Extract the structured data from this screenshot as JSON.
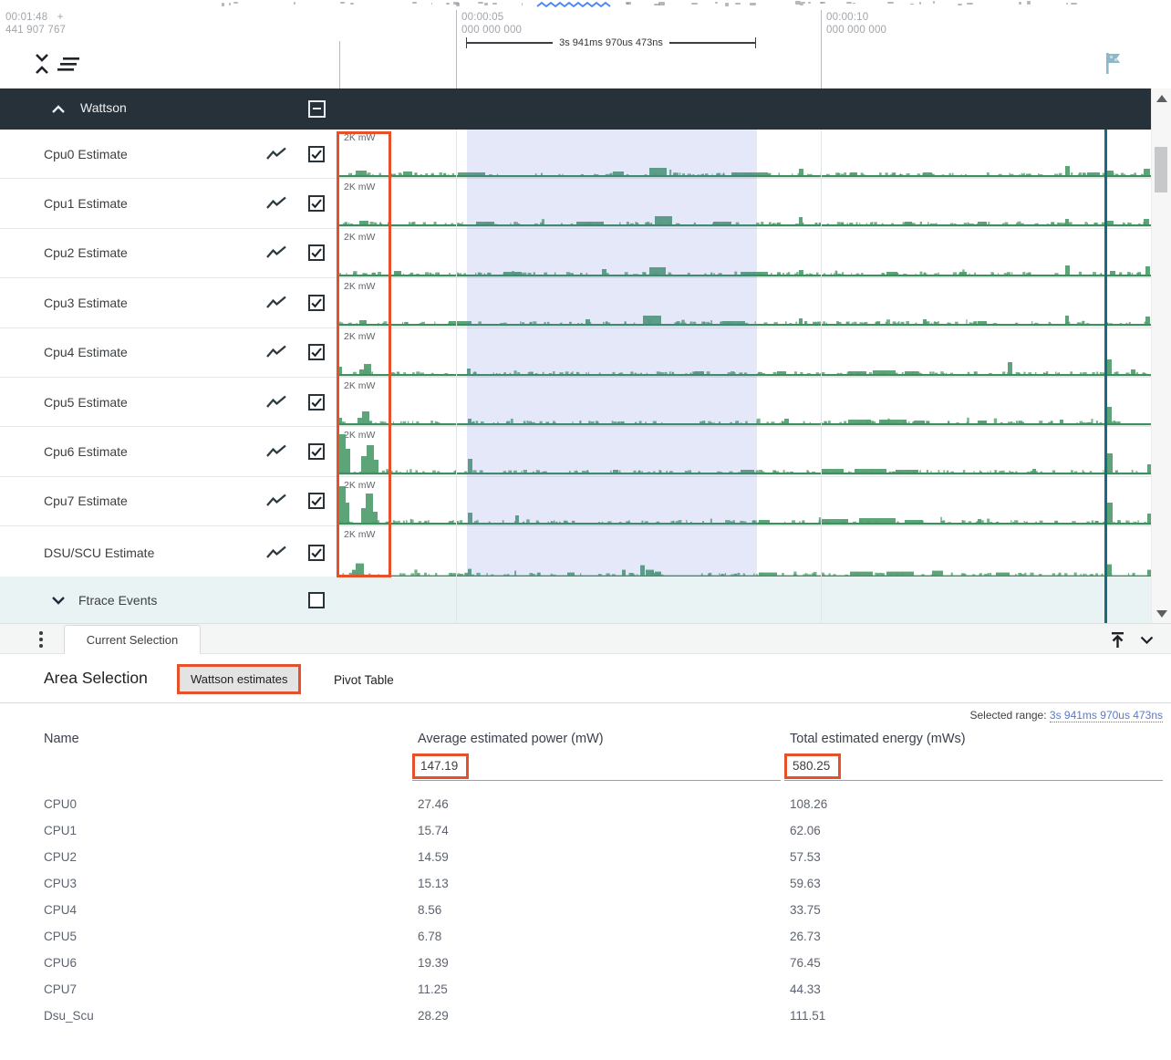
{
  "ruler": {
    "origin_time": "00:01:48",
    "origin_plus": "+",
    "origin_frac": "441 907 767",
    "markers": [
      {
        "time": "00:00:05",
        "frac": "000 000 000"
      },
      {
        "time": "00:00:10",
        "frac": "000 000 000"
      }
    ],
    "span_label": "3s 941ms 970us 473ns"
  },
  "track_panel": {
    "group": {
      "label": "Wattson"
    },
    "scale_label": "2K mW",
    "tracks": [
      {
        "label": "Cpu0 Estimate",
        "spikes": [
          [
            18,
            12,
            5
          ],
          [
            70,
            10,
            4
          ],
          [
            130,
            30,
            3
          ],
          [
            300,
            12,
            4
          ],
          [
            340,
            19,
            8
          ],
          [
            430,
            40,
            3
          ],
          [
            504,
            5,
            7
          ],
          [
            560,
            8,
            3
          ],
          [
            640,
            10,
            3
          ],
          [
            796,
            5,
            10
          ],
          [
            820,
            14,
            3
          ],
          [
            841,
            8,
            5
          ],
          [
            882,
            7,
            7
          ]
        ]
      },
      {
        "label": "Cpu1 Estimate",
        "spikes": [
          [
            22,
            10,
            4
          ],
          [
            150,
            20,
            3
          ],
          [
            260,
            30,
            3
          ],
          [
            346,
            19,
            9
          ],
          [
            410,
            20,
            3
          ],
          [
            504,
            4,
            8
          ],
          [
            620,
            8,
            3
          ],
          [
            700,
            10,
            3
          ],
          [
            796,
            4,
            6
          ],
          [
            841,
            8,
            4
          ],
          [
            882,
            6,
            6
          ]
        ]
      },
      {
        "label": "Cpu2 Estimate",
        "spikes": [
          [
            60,
            8,
            4
          ],
          [
            180,
            20,
            3
          ],
          [
            288,
            5,
            6
          ],
          [
            340,
            18,
            8
          ],
          [
            440,
            30,
            3
          ],
          [
            504,
            5,
            5
          ],
          [
            600,
            12,
            3
          ],
          [
            680,
            8,
            3
          ],
          [
            796,
            5,
            10
          ],
          [
            845,
            6,
            4
          ],
          [
            884,
            5,
            9
          ]
        ]
      },
      {
        "label": "Cpu3 Estimate",
        "spikes": [
          [
            22,
            8,
            4
          ],
          [
            120,
            25,
            3
          ],
          [
            270,
            5,
            5
          ],
          [
            333,
            20,
            9
          ],
          [
            420,
            25,
            3
          ],
          [
            504,
            4,
            6
          ],
          [
            640,
            4,
            5
          ],
          [
            700,
            10,
            3
          ],
          [
            796,
            4,
            9
          ],
          [
            884,
            5,
            8
          ]
        ]
      },
      {
        "label": "Cpu4 Estimate",
        "spikes": [
          [
            0,
            3,
            8
          ],
          [
            22,
            5,
            5
          ],
          [
            27,
            8,
            11
          ],
          [
            140,
            4,
            6
          ],
          [
            390,
            10,
            3
          ],
          [
            480,
            10,
            3
          ],
          [
            558,
            20,
            3
          ],
          [
            585,
            25,
            4
          ],
          [
            620,
            15,
            3
          ],
          [
            733,
            5,
            13
          ],
          [
            841,
            6,
            16
          ],
          [
            868,
            5,
            5
          ]
        ]
      },
      {
        "label": "Cpu5 Estimate",
        "spikes": [
          [
            0,
            3,
            6
          ],
          [
            20,
            5,
            6
          ],
          [
            25,
            8,
            13
          ],
          [
            141,
            4,
            5
          ],
          [
            488,
            5,
            5
          ],
          [
            558,
            25,
            4
          ],
          [
            592,
            30,
            4
          ],
          [
            630,
            12,
            3
          ],
          [
            700,
            10,
            3
          ],
          [
            790,
            4,
            4
          ],
          [
            841,
            6,
            18
          ]
        ]
      },
      {
        "label": "Cpu6 Estimate",
        "spikes": [
          [
            0,
            7,
            42
          ],
          [
            7,
            5,
            26
          ],
          [
            24,
            6,
            18
          ],
          [
            30,
            8,
            30
          ],
          [
            38,
            5,
            14
          ],
          [
            141,
            5,
            15
          ],
          [
            300,
            6,
            3
          ],
          [
            440,
            15,
            3
          ],
          [
            528,
            25,
            4
          ],
          [
            565,
            35,
            4
          ],
          [
            610,
            25,
            3
          ],
          [
            760,
            4,
            4
          ],
          [
            841,
            7,
            21
          ],
          [
            886,
            4,
            9
          ]
        ]
      },
      {
        "label": "Cpu7 Estimate",
        "spikes": [
          [
            0,
            7,
            40
          ],
          [
            7,
            4,
            22
          ],
          [
            24,
            5,
            16
          ],
          [
            29,
            8,
            32
          ],
          [
            37,
            5,
            12
          ],
          [
            141,
            5,
            11
          ],
          [
            193,
            4,
            8
          ],
          [
            460,
            12,
            3
          ],
          [
            528,
            30,
            4
          ],
          [
            570,
            40,
            5
          ],
          [
            620,
            20,
            3
          ],
          [
            700,
            4,
            4
          ],
          [
            841,
            7,
            22
          ],
          [
            886,
            4,
            10
          ]
        ]
      },
      {
        "label": "DSU/SCU Estimate",
        "spikes": [
          [
            14,
            4,
            6
          ],
          [
            18,
            9,
            13
          ],
          [
            141,
            4,
            7
          ],
          [
            250,
            8,
            3
          ],
          [
            310,
            4,
            6
          ],
          [
            330,
            5,
            11
          ],
          [
            336,
            9,
            6
          ],
          [
            346,
            7,
            4
          ],
          [
            460,
            20,
            3
          ],
          [
            560,
            25,
            4
          ],
          [
            600,
            30,
            4
          ],
          [
            650,
            12,
            5
          ],
          [
            720,
            15,
            3
          ],
          [
            841,
            6,
            12
          ],
          [
            886,
            4,
            6
          ]
        ]
      }
    ],
    "ftrace_group": {
      "label": "Ftrace Events"
    }
  },
  "tab_strip": {
    "tab": "Current Selection"
  },
  "details": {
    "title": "Area Selection",
    "tabs": [
      {
        "label": "Wattson estimates",
        "selected": true
      },
      {
        "label": "Pivot Table",
        "selected": false
      }
    ],
    "selected_range_label": "Selected range:",
    "selected_range_value": "3s 941ms 970us 473ns",
    "table": {
      "headers": [
        "Name",
        "Average estimated power (mW)",
        "Total estimated energy (mWs)"
      ],
      "totals": [
        "147.19",
        "580.25"
      ],
      "rows": [
        [
          "CPU0",
          "27.46",
          "108.26"
        ],
        [
          "CPU1",
          "15.74",
          "62.06"
        ],
        [
          "CPU2",
          "14.59",
          "57.53"
        ],
        [
          "CPU3",
          "15.13",
          "59.63"
        ],
        [
          "CPU4",
          "8.56",
          "33.75"
        ],
        [
          "CPU5",
          "6.78",
          "26.73"
        ],
        [
          "CPU6",
          "19.39",
          "76.45"
        ],
        [
          "CPU7",
          "11.25",
          "44.33"
        ],
        [
          "Dsu_Scu",
          "28.29",
          "111.51"
        ]
      ]
    }
  },
  "icons": [
    "collapse-tracks-icon",
    "sort-tracks-icon",
    "flag-icon",
    "chevron-up-icon",
    "chevron-down-icon",
    "line-chart-icon",
    "checkbox-checked",
    "checkbox-indeterminate",
    "checkbox-empty",
    "kebab-menu-icon",
    "scroll-to-top-icon",
    "squiggle-underline"
  ],
  "colors": {
    "accent_orange": "#e4512a",
    "trace_green": "#54a072",
    "trace_green_dark": "#3f8e5f",
    "selection_lavender": "rgba(95,110,215,0.16)",
    "marker_teal": "#1a6b7d",
    "group_header_bg": "#273139",
    "link_blue": "#5b79c4",
    "squiggle_blue": "#4285f4"
  }
}
